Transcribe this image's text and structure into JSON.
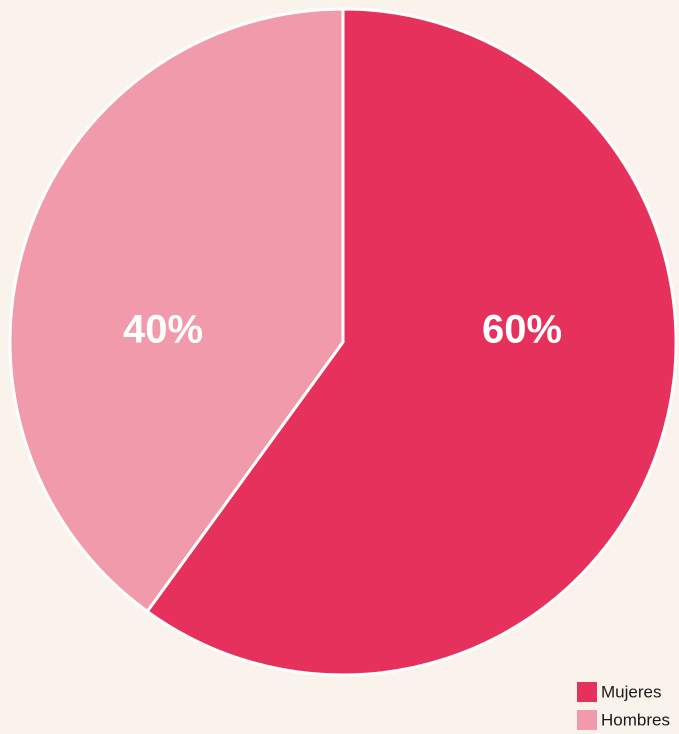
{
  "chart_data": {
    "type": "pie",
    "categories": [
      "Mujeres",
      "Hombres"
    ],
    "values": [
      60,
      40
    ],
    "value_labels": [
      "60%",
      "40%"
    ],
    "colors": [
      "#e5315c",
      "#f09aac"
    ]
  }
}
